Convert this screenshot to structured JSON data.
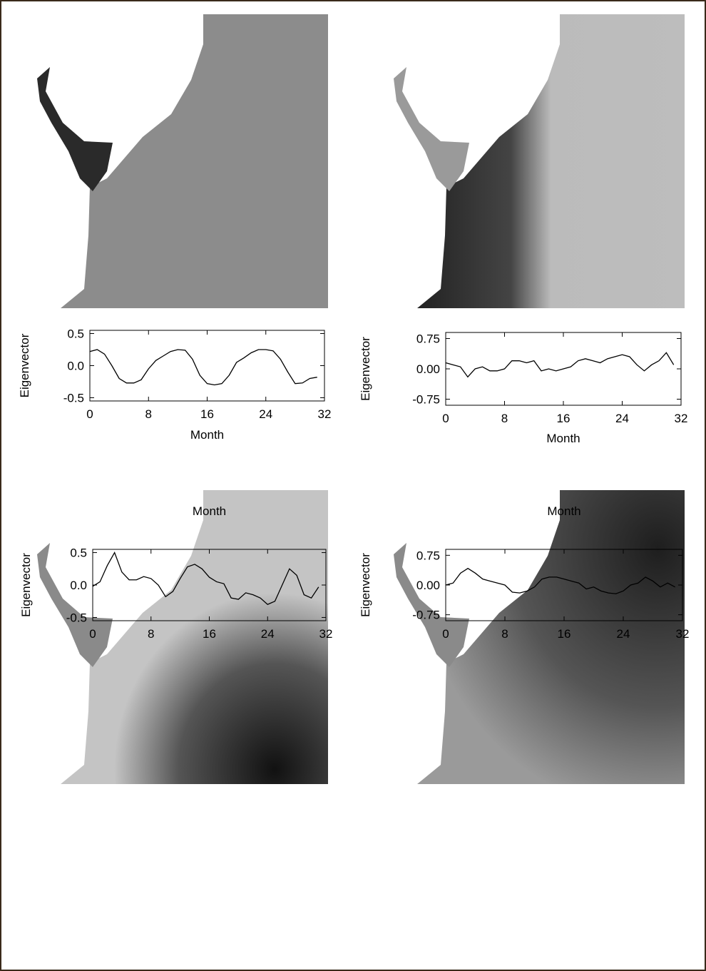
{
  "chart_data": [
    {
      "type": "line",
      "y_label": "Eigenvector",
      "x_label": "Month",
      "x": [
        0,
        1,
        2,
        3,
        4,
        5,
        6,
        7,
        8,
        9,
        10,
        11,
        12,
        13,
        14,
        15,
        16,
        17,
        18,
        19,
        20,
        21,
        22,
        23,
        24,
        25,
        26,
        27,
        28,
        29,
        30,
        31
      ],
      "values": [
        0.22,
        0.25,
        0.18,
        0.0,
        -0.2,
        -0.27,
        -0.27,
        -0.22,
        -0.05,
        0.08,
        0.15,
        0.22,
        0.25,
        0.24,
        0.1,
        -0.15,
        -0.28,
        -0.3,
        -0.28,
        -0.15,
        0.05,
        0.12,
        0.2,
        0.25,
        0.25,
        0.23,
        0.1,
        -0.1,
        -0.28,
        -0.27,
        -0.2,
        -0.18
      ],
      "color": "#000000",
      "xlim": [
        0,
        32
      ],
      "xticks": [
        0,
        8,
        16,
        24,
        32
      ],
      "ylim": [
        -0.55,
        0.55
      ],
      "yticks": [
        0.5,
        {
          "value": 0,
          "label": "0.0"
        },
        -0.5
      ]
    },
    {
      "type": "line",
      "y_label": "Eigenvector",
      "x_label": "Month",
      "x": [
        0,
        1,
        2,
        3,
        4,
        5,
        6,
        7,
        8,
        9,
        10,
        11,
        12,
        13,
        14,
        15,
        16,
        17,
        18,
        19,
        20,
        21,
        22,
        23,
        24,
        25,
        26,
        27,
        28,
        29,
        30,
        31
      ],
      "values": [
        0.15,
        0.1,
        0.05,
        -0.2,
        0.0,
        0.05,
        -0.05,
        -0.05,
        0.0,
        0.2,
        0.2,
        0.15,
        0.2,
        -0.05,
        0.0,
        -0.05,
        0.0,
        0.05,
        0.2,
        0.25,
        0.2,
        0.15,
        0.25,
        0.3,
        0.35,
        0.3,
        0.1,
        -0.05,
        0.1,
        0.2,
        0.4,
        0.1
      ],
      "color": "#000000",
      "xlim": [
        0,
        32
      ],
      "xticks": [
        0,
        8,
        16,
        24,
        32
      ],
      "ylim": [
        -0.9,
        0.9
      ],
      "yticks": [
        0.75,
        {
          "value": 0,
          "label": "0.00"
        },
        -0.75
      ]
    },
    {
      "type": "line",
      "y_label": "Eigenvector",
      "x_label": "Month",
      "x": [
        0,
        1,
        2,
        3,
        4,
        5,
        6,
        7,
        8,
        9,
        10,
        11,
        12,
        13,
        14,
        15,
        16,
        17,
        18,
        19,
        20,
        21,
        22,
        23,
        24,
        25,
        26,
        27,
        28,
        29,
        30,
        31
      ],
      "values": [
        -0.02,
        0.05,
        0.3,
        0.5,
        0.2,
        0.08,
        0.08,
        0.13,
        0.1,
        0.0,
        -0.18,
        -0.1,
        0.1,
        0.28,
        0.32,
        0.25,
        0.12,
        0.05,
        0.02,
        -0.2,
        -0.22,
        -0.12,
        -0.15,
        -0.2,
        -0.3,
        -0.25,
        0.0,
        0.25,
        0.15,
        -0.15,
        -0.2,
        -0.03
      ],
      "color": "#000000",
      "xlim": [
        0,
        32
      ],
      "xticks": [
        0,
        8,
        16,
        24,
        32
      ],
      "ylim": [
        -0.55,
        0.55
      ],
      "yticks": [
        0.5,
        {
          "value": 0,
          "label": "0.0"
        },
        -0.5
      ]
    },
    {
      "type": "line",
      "y_label": "Eigenvector",
      "x_label": "Month",
      "x": [
        0,
        1,
        2,
        3,
        4,
        5,
        6,
        7,
        8,
        9,
        10,
        11,
        12,
        13,
        14,
        15,
        16,
        17,
        18,
        19,
        20,
        21,
        22,
        23,
        24,
        25,
        26,
        27,
        28,
        29,
        30,
        31
      ],
      "values": [
        0.0,
        0.05,
        0.3,
        0.42,
        0.3,
        0.15,
        0.1,
        0.05,
        0.0,
        -0.18,
        -0.2,
        -0.15,
        -0.05,
        0.15,
        0.2,
        0.2,
        0.15,
        0.1,
        0.05,
        -0.1,
        -0.05,
        -0.15,
        -0.2,
        -0.22,
        -0.15,
        0.0,
        0.05,
        0.2,
        0.1,
        -0.05,
        0.05,
        -0.05
      ],
      "color": "#000000",
      "xlim": [
        0,
        32
      ],
      "xticks": [
        0,
        8,
        16,
        24,
        32
      ],
      "ylim": [
        -0.9,
        0.9
      ],
      "yticks": [
        0.75,
        {
          "value": 0,
          "label": "0.00"
        },
        -0.75
      ]
    }
  ]
}
